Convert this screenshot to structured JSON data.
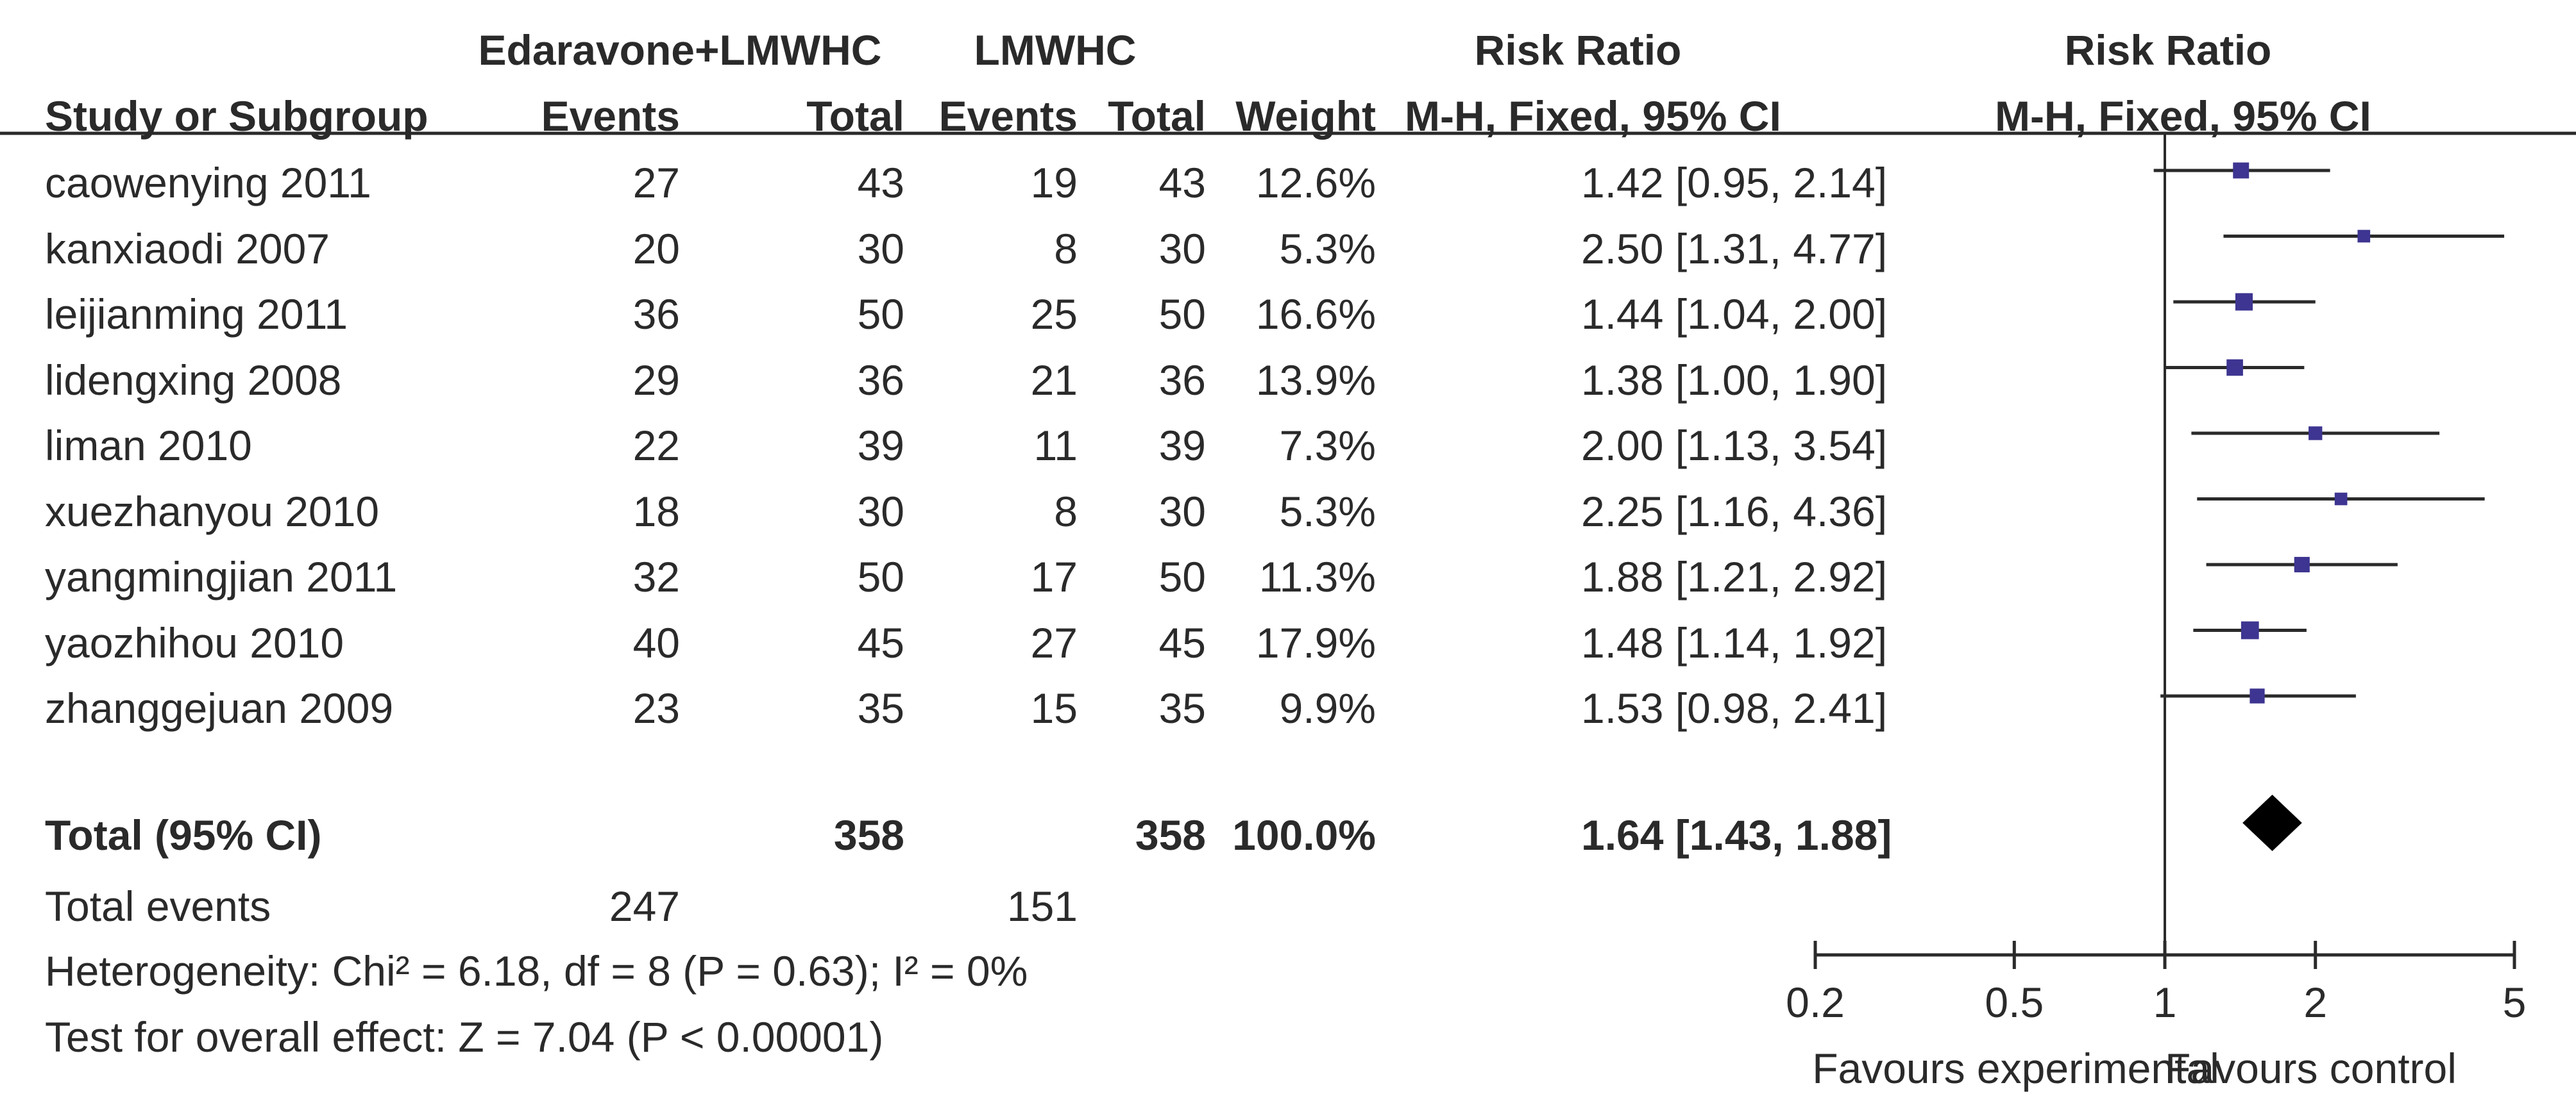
{
  "headers": {
    "group1": "Edaravone+LMWHC",
    "group2": "LMWHC",
    "rr_text_title": "Risk Ratio",
    "rr_plot_title": "Risk Ratio",
    "study": "Study or Subgroup",
    "events1": "Events",
    "total1": "Total",
    "events2": "Events",
    "total2": "Total",
    "weight": "Weight",
    "method_text": "M-H, Fixed, 95% CI",
    "method_plot": "M-H, Fixed, 95% CI"
  },
  "rows": [
    {
      "study": "caowenying 2011",
      "e1": "27",
      "t1": "43",
      "e2": "19",
      "t2": "43",
      "weight": "12.6%",
      "ci": "1.42 [0.95, 2.14]"
    },
    {
      "study": "kanxiaodi 2007",
      "e1": "20",
      "t1": "30",
      "e2": "8",
      "t2": "30",
      "weight": "5.3%",
      "ci": "2.50 [1.31, 4.77]"
    },
    {
      "study": "leijianming 2011",
      "e1": "36",
      "t1": "50",
      "e2": "25",
      "t2": "50",
      "weight": "16.6%",
      "ci": "1.44 [1.04, 2.00]"
    },
    {
      "study": "lidengxing 2008",
      "e1": "29",
      "t1": "36",
      "e2": "21",
      "t2": "36",
      "weight": "13.9%",
      "ci": "1.38 [1.00, 1.90]"
    },
    {
      "study": "liman 2010",
      "e1": "22",
      "t1": "39",
      "e2": "11",
      "t2": "39",
      "weight": "7.3%",
      "ci": "2.00 [1.13, 3.54]"
    },
    {
      "study": "xuezhanyou 2010",
      "e1": "18",
      "t1": "30",
      "e2": "8",
      "t2": "30",
      "weight": "5.3%",
      "ci": "2.25 [1.16, 4.36]"
    },
    {
      "study": "yangmingjian 2011",
      "e1": "32",
      "t1": "50",
      "e2": "17",
      "t2": "50",
      "weight": "11.3%",
      "ci": "1.88 [1.21, 2.92]"
    },
    {
      "study": "yaozhihou 2010",
      "e1": "40",
      "t1": "45",
      "e2": "27",
      "t2": "45",
      "weight": "17.9%",
      "ci": "1.48 [1.14, 1.92]"
    },
    {
      "study": "zhanggejuan 2009",
      "e1": "23",
      "t1": "35",
      "e2": "15",
      "t2": "35",
      "weight": "9.9%",
      "ci": "1.53 [0.98, 2.41]"
    }
  ],
  "total": {
    "label": "Total (95% CI)",
    "t1": "358",
    "t2": "358",
    "weight": "100.0%",
    "ci": "1.64 [1.43, 1.88]"
  },
  "total_events": {
    "label": "Total events",
    "e1": "247",
    "e2": "151"
  },
  "heterogeneity": "Heterogeneity: Chi² = 6.18, df = 8 (P = 0.63); I² = 0%",
  "overall_effect": "Test for overall effect: Z = 7.04 (P < 0.00001)",
  "chart_data": {
    "type": "forest",
    "scale": "log",
    "xlim": [
      0.2,
      5
    ],
    "ticks": [
      0.2,
      0.5,
      1,
      2,
      5
    ],
    "tick_labels": [
      "0.2",
      "0.5",
      "1",
      "2",
      "5"
    ],
    "xlabel_left": "Favours experimental",
    "xlabel_right": "Favours control",
    "reference_line": 1,
    "marker_color": "#3d3591",
    "studies": [
      {
        "name": "caowenying 2011",
        "rr": 1.42,
        "lo": 0.95,
        "hi": 2.14,
        "weight": 12.6
      },
      {
        "name": "kanxiaodi 2007",
        "rr": 2.5,
        "lo": 1.31,
        "hi": 4.77,
        "weight": 5.3
      },
      {
        "name": "leijianming 2011",
        "rr": 1.44,
        "lo": 1.04,
        "hi": 2.0,
        "weight": 16.6
      },
      {
        "name": "lidengxing 2008",
        "rr": 1.38,
        "lo": 1.0,
        "hi": 1.9,
        "weight": 13.9
      },
      {
        "name": "liman 2010",
        "rr": 2.0,
        "lo": 1.13,
        "hi": 3.54,
        "weight": 7.3
      },
      {
        "name": "xuezhanyou 2010",
        "rr": 2.25,
        "lo": 1.16,
        "hi": 4.36,
        "weight": 5.3
      },
      {
        "name": "yangmingjian 2011",
        "rr": 1.88,
        "lo": 1.21,
        "hi": 2.92,
        "weight": 11.3
      },
      {
        "name": "yaozhihou 2010",
        "rr": 1.48,
        "lo": 1.14,
        "hi": 1.92,
        "weight": 17.9
      },
      {
        "name": "zhanggejuan 2009",
        "rr": 1.53,
        "lo": 0.98,
        "hi": 2.41,
        "weight": 9.9
      }
    ],
    "pooled": {
      "rr": 1.64,
      "lo": 1.43,
      "hi": 1.88
    }
  }
}
